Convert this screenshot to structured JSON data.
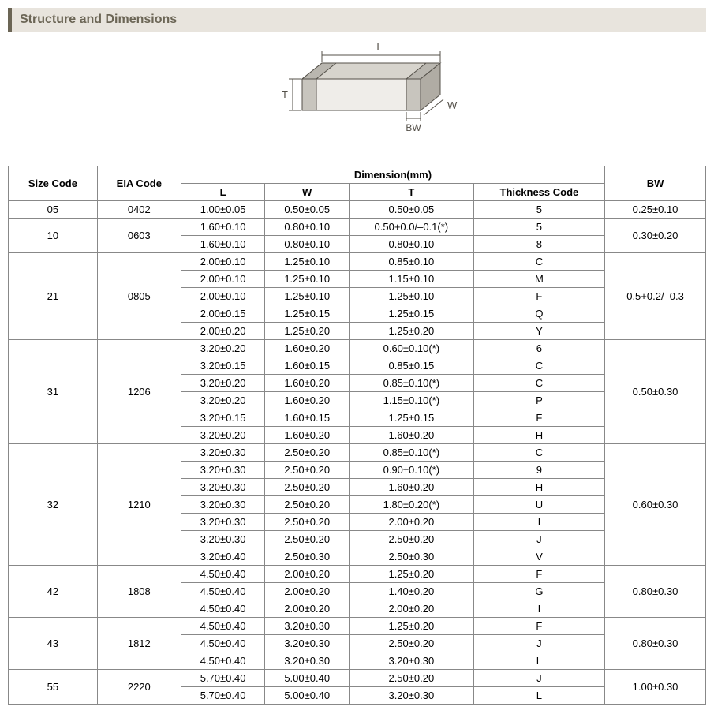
{
  "section_title": "Structure and Dimensions",
  "diagram": {
    "labels": {
      "L": "L",
      "W": "W",
      "T": "T",
      "BW": "BW"
    },
    "stroke": "#545049",
    "fill_left": "#b0aca4",
    "fill_top": "#d7d4cd",
    "fill_front": "#efede9"
  },
  "headers": {
    "size_code": "Size Code",
    "eia_code": "EIA Code",
    "dimension": "Dimension(mm)",
    "L": "L",
    "W": "W",
    "T": "T",
    "thickness_code": "Thickness  Code",
    "BW": "BW"
  },
  "groups": [
    {
      "size": "05",
      "eia": "0402",
      "bw": "0.25±0.10",
      "rows": [
        {
          "L": "1.00±0.05",
          "W": "0.50±0.05",
          "T": "0.50±0.05",
          "tc": "5"
        }
      ]
    },
    {
      "size": "10",
      "eia": "0603",
      "bw": "0.30±0.20",
      "rows": [
        {
          "L": "1.60±0.10",
          "W": "0.80±0.10",
          "T": "0.50+0.0/–0.1(*)",
          "tc": "5"
        },
        {
          "L": "1.60±0.10",
          "W": "0.80±0.10",
          "T": "0.80±0.10",
          "tc": "8"
        }
      ]
    },
    {
      "size": "21",
      "eia": "0805",
      "bw": "0.5+0.2/–0.3",
      "rows": [
        {
          "L": "2.00±0.10",
          "W": "1.25±0.10",
          "T": "0.85±0.10",
          "tc": "C"
        },
        {
          "L": "2.00±0.10",
          "W": "1.25±0.10",
          "T": "1.15±0.10",
          "tc": "M"
        },
        {
          "L": "2.00±0.10",
          "W": "1.25±0.10",
          "T": "1.25±0.10",
          "tc": "F"
        },
        {
          "L": "2.00±0.15",
          "W": "1.25±0.15",
          "T": "1.25±0.15",
          "tc": "Q"
        },
        {
          "L": "2.00±0.20",
          "W": "1.25±0.20",
          "T": "1.25±0.20",
          "tc": "Y"
        }
      ]
    },
    {
      "size": "31",
      "eia": "1206",
      "bw": "0.50±0.30",
      "rows": [
        {
          "L": "3.20±0.20",
          "W": "1.60±0.20",
          "T": "0.60±0.10(*)",
          "tc": "6"
        },
        {
          "L": "3.20±0.15",
          "W": "1.60±0.15",
          "T": "0.85±0.15",
          "tc": "C"
        },
        {
          "L": "3.20±0.20",
          "W": "1.60±0.20",
          "T": "0.85±0.10(*)",
          "tc": "C"
        },
        {
          "L": "3.20±0.20",
          "W": "1.60±0.20",
          "T": "1.15±0.10(*)",
          "tc": "P"
        },
        {
          "L": "3.20±0.15",
          "W": "1.60±0.15",
          "T": "1.25±0.15",
          "tc": "F"
        },
        {
          "L": "3.20±0.20",
          "W": "1.60±0.20",
          "T": "1.60±0.20",
          "tc": "H"
        }
      ]
    },
    {
      "size": "32",
      "eia": "1210",
      "bw": "0.60±0.30",
      "rows": [
        {
          "L": "3.20±0.30",
          "W": "2.50±0.20",
          "T": "0.85±0.10(*)",
          "tc": "C"
        },
        {
          "L": "3.20±0.30",
          "W": "2.50±0.20",
          "T": "0.90±0.10(*)",
          "tc": "9"
        },
        {
          "L": "3.20±0.30",
          "W": "2.50±0.20",
          "T": "1.60±0.20",
          "tc": "H"
        },
        {
          "L": "3.20±0.30",
          "W": "2.50±0.20",
          "T": "1.80±0.20(*)",
          "tc": "U"
        },
        {
          "L": "3.20±0.30",
          "W": "2.50±0.20",
          "T": "2.00±0.20",
          "tc": "I"
        },
        {
          "L": "3.20±0.30",
          "W": "2.50±0.20",
          "T": "2.50±0.20",
          "tc": "J"
        },
        {
          "L": "3.20±0.40",
          "W": "2.50±0.30",
          "T": "2.50±0.30",
          "tc": "V"
        }
      ]
    },
    {
      "size": "42",
      "eia": "1808",
      "bw": "0.80±0.30",
      "rows": [
        {
          "L": "4.50±0.40",
          "W": "2.00±0.20",
          "T": "1.25±0.20",
          "tc": "F"
        },
        {
          "L": "4.50±0.40",
          "W": "2.00±0.20",
          "T": "1.40±0.20",
          "tc": "G"
        },
        {
          "L": "4.50±0.40",
          "W": "2.00±0.20",
          "T": "2.00±0.20",
          "tc": "I"
        }
      ]
    },
    {
      "size": "43",
      "eia": "1812",
      "bw": "0.80±0.30",
      "rows": [
        {
          "L": "4.50±0.40",
          "W": "3.20±0.30",
          "T": "1.25±0.20",
          "tc": "F"
        },
        {
          "L": "4.50±0.40",
          "W": "3.20±0.30",
          "T": "2.50±0.20",
          "tc": "J"
        },
        {
          "L": "4.50±0.40",
          "W": "3.20±0.30",
          "T": "3.20±0.30",
          "tc": "L"
        }
      ]
    },
    {
      "size": "55",
      "eia": "2220",
      "bw": "1.00±0.30",
      "rows": [
        {
          "L": "5.70±0.40",
          "W": "5.00±0.40",
          "T": "2.50±0.20",
          "tc": "J"
        },
        {
          "L": "5.70±0.40",
          "W": "5.00±0.40",
          "T": "3.20±0.30",
          "tc": "L"
        }
      ]
    }
  ]
}
